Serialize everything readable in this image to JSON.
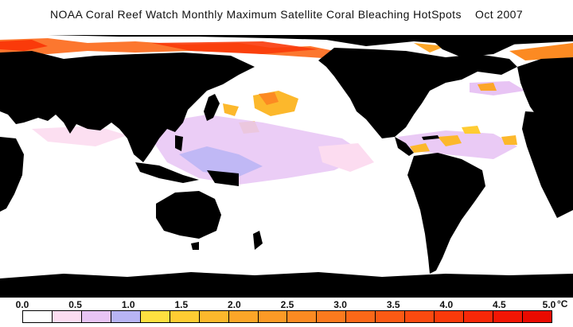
{
  "title": "NOAA Coral Reef Watch Monthly Maximum Satellite Coral Bleaching HotSpots    Oct 2007",
  "legend": {
    "tick_labels": [
      "0.0",
      "0.5",
      "1.0",
      "1.5",
      "2.0",
      "2.5",
      "3.0",
      "3.5",
      "4.0",
      "4.5",
      "5.0"
    ],
    "unit": "°C",
    "colors": [
      "#ffffff",
      "#fcdcf0",
      "#e8c4f4",
      "#b8b4f4",
      "#ffe040",
      "#ffcc33",
      "#fcb82c",
      "#fca628",
      "#fc9a26",
      "#fc8a22",
      "#fc7a1e",
      "#fc6818",
      "#fc5a14",
      "#fb4a10",
      "#fa3a0a",
      "#f82808",
      "#f21604",
      "#ea0a00"
    ]
  },
  "map": {
    "land_color": "#000000",
    "ocean_color": "#ffffff"
  }
}
